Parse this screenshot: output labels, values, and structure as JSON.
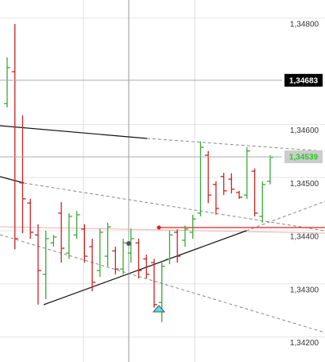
{
  "chart_data": {
    "type": "ohlc",
    "ylim": [
      1.34153,
      1.34834
    ],
    "yticks": [
      {
        "value": 1.348,
        "label": "1,34800"
      },
      {
        "value": 1.346,
        "label": "1,34600"
      },
      {
        "value": 1.345,
        "label": "1,34500"
      },
      {
        "value": 1.344,
        "label": "1,34400"
      },
      {
        "value": 1.343,
        "label": "1,34300"
      },
      {
        "value": 1.342,
        "label": "1,34200"
      }
    ],
    "grid": true,
    "up_color": "#3aa83a",
    "down_color": "#cc2020",
    "open": [
      1.34639,
      1.34699,
      1.3449,
      1.34452,
      1.34392,
      1.34318,
      1.34377,
      1.34433,
      1.34358,
      1.34392,
      1.34403,
      1.3437,
      1.34325,
      1.34352,
      1.34362,
      1.34328,
      1.34358,
      1.34377,
      1.34347,
      1.3434,
      1.34265,
      1.34347,
      1.34397,
      1.34382,
      1.34397,
      1.34433,
      1.34542,
      1.34487,
      1.34502,
      1.34497,
      1.34472,
      1.34467,
      1.34512,
      1.34427,
      1.34493
    ],
    "high": [
      1.34726,
      1.34789,
      1.34617,
      1.3446,
      1.34412,
      1.344,
      1.34392,
      1.34454,
      1.34433,
      1.34437,
      1.34412,
      1.34385,
      1.34404,
      1.34415,
      1.3437,
      1.34385,
      1.34404,
      1.34385,
      1.34355,
      1.34347,
      1.3434,
      1.344,
      1.34403,
      1.3441,
      1.3443,
      1.34568,
      1.3455,
      1.34493,
      1.34509,
      1.34508,
      1.34475,
      1.34557,
      1.34517,
      1.34493,
      1.34542
    ],
    "low": [
      1.34632,
      1.34365,
      1.34395,
      1.34385,
      1.34261,
      1.34271,
      1.3437,
      1.3434,
      1.34347,
      1.34385,
      1.3434,
      1.34286,
      1.34313,
      1.34333,
      1.34318,
      1.34318,
      1.3434,
      1.3431,
      1.3431,
      1.34255,
      1.34228,
      1.34337,
      1.3434,
      1.3437,
      1.34385,
      1.34427,
      1.34452,
      1.3443,
      1.34467,
      1.3447,
      1.3446,
      1.3446,
      1.34427,
      1.34415,
      1.34487
    ],
    "close": [
      1.34707,
      1.34385,
      1.3446,
      1.34397,
      1.34325,
      1.34385,
      1.34388,
      1.34367,
      1.34427,
      1.3443,
      1.34352,
      1.34303,
      1.34397,
      1.34407,
      1.34328,
      1.34377,
      1.34385,
      1.34325,
      1.34318,
      1.34261,
      1.34333,
      1.34392,
      1.34352,
      1.34403,
      1.34422,
      1.34557,
      1.34467,
      1.34442,
      1.34475,
      1.34478,
      1.34463,
      1.3455,
      1.34433,
      1.34487,
      1.34538
    ],
    "price_labels": [
      {
        "value": 1.34683,
        "label": "1,34683",
        "background": "#000000",
        "color": "#ffffff"
      },
      {
        "value": 1.34539,
        "label": "1,34539",
        "background": "#cccccc",
        "color": "#22cc22"
      }
    ]
  }
}
